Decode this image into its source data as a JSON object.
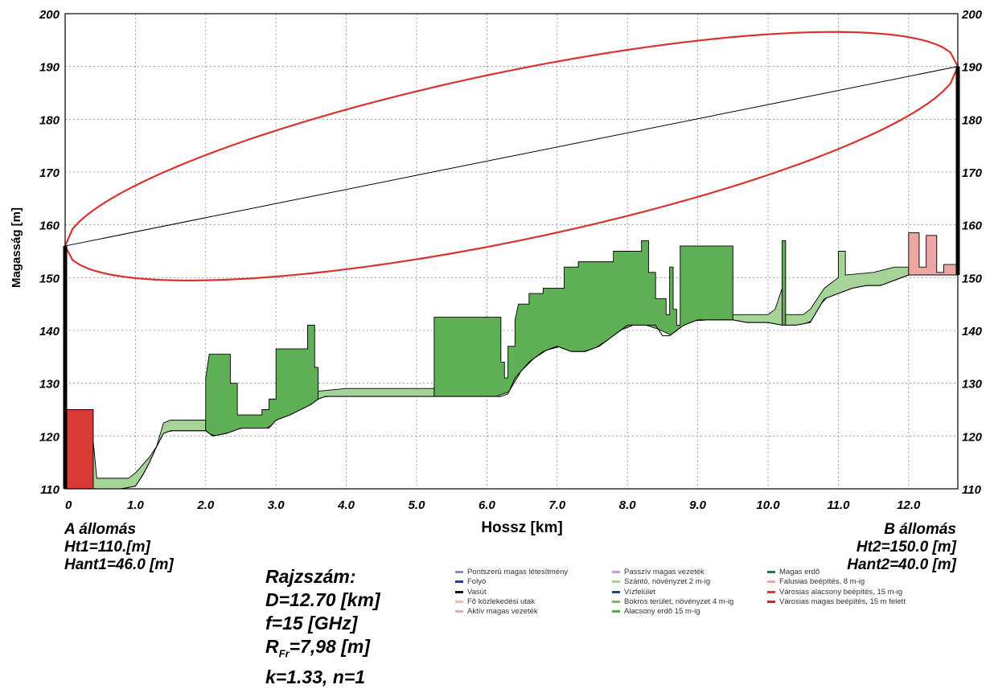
{
  "chart_data": {
    "type": "area",
    "xlabel": "Hossz [km]",
    "ylabel": "Magasság [m]",
    "xlim": [
      0,
      12.7
    ],
    "ylim": [
      110,
      200
    ],
    "x_ticks": [
      {
        "value": 0,
        "label": "0"
      },
      {
        "value": 1,
        "label": "1.0"
      },
      {
        "value": 2,
        "label": "2.0"
      },
      {
        "value": 3,
        "label": "3.0"
      },
      {
        "value": 4,
        "label": "4.0"
      },
      {
        "value": 5,
        "label": "5.0"
      },
      {
        "value": 6,
        "label": "6.0"
      },
      {
        "value": 7,
        "label": "7.0"
      },
      {
        "value": 8,
        "label": "8.0"
      },
      {
        "value": 9,
        "label": "9.0"
      },
      {
        "value": 10,
        "label": "10.0"
      },
      {
        "value": 11,
        "label": "11.0"
      },
      {
        "value": 12,
        "label": "12.0"
      }
    ],
    "y_ticks": [
      110,
      120,
      130,
      140,
      150,
      160,
      170,
      180,
      190,
      200
    ],
    "grid": true,
    "terrain": {
      "x": [
        0,
        0.4,
        0.5,
        0.8,
        1.0,
        1.1,
        1.2,
        1.3,
        1.4,
        1.5,
        1.8,
        2.0,
        2.1,
        2.3,
        2.5,
        2.7,
        2.9,
        3.0,
        3.2,
        3.5,
        3.6,
        3.7,
        4.0,
        4.5,
        5.0,
        5.5,
        6.0,
        6.2,
        6.3,
        6.4,
        6.6,
        6.8,
        7.0,
        7.2,
        7.4,
        7.6,
        7.8,
        8.0,
        8.2,
        8.4,
        8.5,
        8.6,
        8.8,
        9.0,
        9.3,
        9.5,
        9.7,
        9.9,
        10.0,
        10.2,
        10.4,
        10.6,
        10.8,
        11.0,
        11.2,
        11.4,
        11.6,
        11.8,
        12.0,
        12.3,
        12.7
      ],
      "y": [
        110,
        110,
        110,
        110,
        110.5,
        112.5,
        115,
        118,
        120.5,
        121,
        121,
        121,
        120,
        120.5,
        121.5,
        121.5,
        121.5,
        123,
        124,
        126,
        127,
        127.5,
        127.5,
        127.5,
        127.5,
        127.5,
        127.5,
        127.5,
        128,
        131,
        134,
        136,
        137,
        136,
        136,
        137,
        139,
        141,
        141,
        141,
        139,
        139,
        141,
        142,
        142,
        142,
        141.5,
        141.5,
        141.5,
        141,
        141,
        141.5,
        146,
        147,
        148,
        148.5,
        148.5,
        149.5,
        150.5,
        150.5,
        150.5
      ]
    },
    "los": {
      "x": [
        0,
        12.7
      ],
      "y": [
        156,
        190
      ]
    },
    "fresnel_radius_m": 7.98,
    "clutter": [
      {
        "type": "urban",
        "color": "#d93a35",
        "top": [
          [
            0.0,
            125
          ],
          [
            0.4,
            125
          ]
        ]
      },
      {
        "type": "field",
        "color": "#a6d398",
        "top": [
          [
            0.4,
            119
          ],
          [
            0.45,
            112
          ],
          [
            0.9,
            112
          ],
          [
            1.0,
            113
          ],
          [
            1.2,
            116
          ],
          [
            1.3,
            118
          ],
          [
            1.4,
            122.5
          ],
          [
            1.5,
            123
          ],
          [
            2.0,
            123
          ]
        ]
      },
      {
        "type": "forest",
        "color": "#5faf55",
        "top": [
          [
            2.0,
            131
          ],
          [
            2.05,
            135.5
          ],
          [
            2.35,
            135.5
          ],
          [
            2.35,
            130
          ],
          [
            2.45,
            130
          ],
          [
            2.45,
            124
          ],
          [
            2.8,
            124
          ],
          [
            2.8,
            125
          ],
          [
            2.9,
            125
          ],
          [
            2.9,
            127
          ],
          [
            3.0,
            127
          ],
          [
            3.0,
            136.5
          ],
          [
            3.45,
            136.5
          ],
          [
            3.45,
            141
          ],
          [
            3.55,
            141
          ],
          [
            3.55,
            133
          ],
          [
            3.6,
            133
          ],
          [
            3.6,
            129
          ]
        ]
      },
      {
        "type": "field",
        "color": "#a6d398",
        "top": [
          [
            3.6,
            128.5
          ],
          [
            4.0,
            129
          ],
          [
            4.5,
            129
          ],
          [
            5.0,
            129
          ],
          [
            5.25,
            129
          ]
        ]
      },
      {
        "type": "forest",
        "color": "#5faf55",
        "top": [
          [
            5.25,
            142.5
          ],
          [
            6.2,
            142.5
          ],
          [
            6.2,
            134
          ],
          [
            6.25,
            134
          ],
          [
            6.25,
            131
          ],
          [
            6.3,
            131
          ],
          [
            6.3,
            137
          ],
          [
            6.4,
            137
          ],
          [
            6.4,
            142
          ],
          [
            6.45,
            145
          ],
          [
            6.6,
            145
          ],
          [
            6.6,
            147
          ],
          [
            6.8,
            147
          ],
          [
            6.8,
            148
          ],
          [
            7.1,
            148
          ],
          [
            7.1,
            152
          ],
          [
            7.3,
            152
          ],
          [
            7.3,
            153
          ],
          [
            7.8,
            153
          ],
          [
            7.8,
            155
          ],
          [
            8.2,
            155
          ],
          [
            8.2,
            157
          ],
          [
            8.3,
            157
          ],
          [
            8.3,
            151
          ],
          [
            8.4,
            151
          ],
          [
            8.4,
            146
          ],
          [
            8.55,
            146
          ],
          [
            8.55,
            143
          ],
          [
            8.6,
            143
          ],
          [
            8.6,
            152
          ],
          [
            8.65,
            152
          ],
          [
            8.65,
            144
          ],
          [
            8.7,
            144
          ],
          [
            8.7,
            141
          ],
          [
            8.75,
            141
          ],
          [
            8.75,
            156
          ],
          [
            9.5,
            156
          ],
          [
            9.5,
            143
          ]
        ]
      },
      {
        "type": "field",
        "color": "#a6d398",
        "top": [
          [
            9.5,
            143
          ],
          [
            10.0,
            143
          ],
          [
            10.1,
            144
          ],
          [
            10.15,
            146
          ],
          [
            10.2,
            148
          ]
        ]
      },
      {
        "type": "forest",
        "color": "#5faf55",
        "top": [
          [
            10.2,
            157
          ],
          [
            10.25,
            157
          ],
          [
            10.25,
            143
          ]
        ]
      },
      {
        "type": "field",
        "color": "#a6d398",
        "top": [
          [
            10.25,
            143
          ],
          [
            10.5,
            143
          ],
          [
            10.6,
            144
          ],
          [
            10.8,
            148
          ],
          [
            11.0,
            150
          ],
          [
            11.0,
            155
          ],
          [
            11.1,
            155
          ],
          [
            11.1,
            150.5
          ],
          [
            11.5,
            151
          ],
          [
            11.8,
            152
          ],
          [
            12.0,
            152
          ]
        ]
      },
      {
        "type": "village",
        "color": "#eda7a3",
        "top": [
          [
            12.0,
            158.5
          ],
          [
            12.15,
            158.5
          ],
          [
            12.15,
            152
          ],
          [
            12.25,
            152
          ],
          [
            12.25,
            158
          ],
          [
            12.4,
            158
          ],
          [
            12.4,
            151
          ],
          [
            12.5,
            151
          ],
          [
            12.5,
            152.5
          ],
          [
            12.7,
            152.5
          ]
        ]
      }
    ]
  },
  "station_a": {
    "name": "A állomás",
    "ht": "Ht1=110.[m]",
    "hant": "Hant1=46.0 [m]"
  },
  "station_b": {
    "name": "B állomás",
    "ht": "Ht2=150.0 [m]",
    "hant": "Hant2=40.0 [m]"
  },
  "params": {
    "title": "Rajzszám:",
    "distance": "D=12.70 [km]",
    "frequency": "f=15 [GHz]",
    "fresnel_prefix": "R",
    "fresnel_subscript": "Fr",
    "fresnel_value": "=7,98 [m]",
    "k": "k=1.33, n=1"
  },
  "legend": {
    "col1": [
      {
        "label": "Pontszerû magas létesítmény",
        "color": "#8c8fc7"
      },
      {
        "label": "Folyó",
        "color": "#2b3d8f"
      },
      {
        "label": "Vasút",
        "color": "#111111"
      },
      {
        "label": "Fõ közlekedési utak",
        "color": "#f3b8b2"
      },
      {
        "label": "Aktív magas vezeték",
        "color": "#d9aec8"
      }
    ],
    "col2": [
      {
        "label": "Passzív magas vezeték",
        "color": "#c8a0cf"
      },
      {
        "label": "Szántó, növényzet 2 m-ig",
        "color": "#a6d398"
      },
      {
        "label": "Vízfelület",
        "color": "#2a3f8f"
      },
      {
        "label": "Bokros terület, növényzet 4 m-ig",
        "color": "#6bbf5b"
      },
      {
        "label": "Alacsony erdõ 15 m-ig",
        "color": "#4fae48"
      }
    ],
    "col3": [
      {
        "label": "Magas erdõ",
        "color": "#1f7a45"
      },
      {
        "label": "Falusias beépítés, 8 m-ig",
        "color": "#eda7a3"
      },
      {
        "label": "Városias alacsony beépítés, 15 m-ig",
        "color": "#d93a35"
      },
      {
        "label": "Városias magas beépítés, 15 m felett",
        "color": "#c62828"
      }
    ]
  }
}
